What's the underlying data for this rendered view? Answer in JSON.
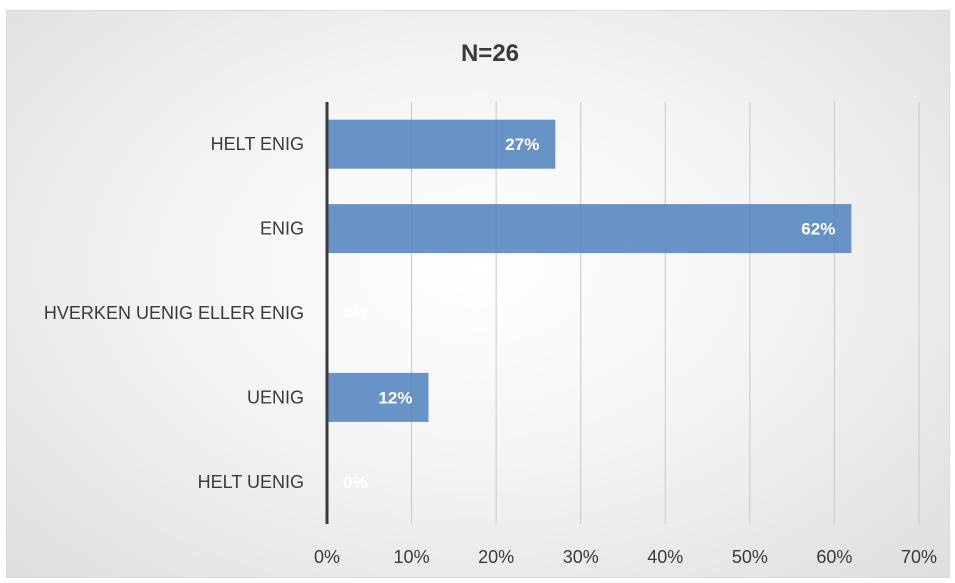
{
  "chart_data": {
    "type": "bar",
    "orientation": "horizontal",
    "title": "N=26",
    "categories": [
      "HELT ENIG",
      "ENIG",
      "HVERKEN UENIG ELLER ENIG",
      "UENIG",
      "HELT UENIG"
    ],
    "values": [
      27,
      62,
      0,
      12,
      0
    ],
    "data_labels": [
      "27%",
      "62%",
      "0%",
      "12%",
      "0%"
    ],
    "x_ticks": [
      "0%",
      "10%",
      "20%",
      "30%",
      "40%",
      "50%",
      "60%",
      "70%"
    ],
    "xlim": [
      0,
      70
    ],
    "grid": true,
    "legend": "none",
    "bar_color": "#4f81bd"
  }
}
